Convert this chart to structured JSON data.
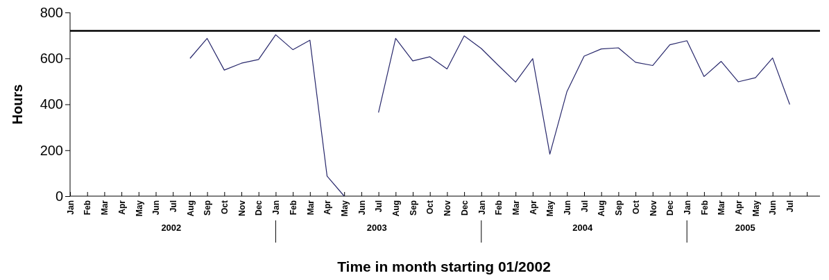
{
  "chart_data": {
    "type": "line",
    "xlabel": "Time in month starting 01/2002",
    "ylabel": "Hours",
    "categories": [
      "Jan",
      "Feb",
      "Mar",
      "Apr",
      "May",
      "Jun",
      "Jul",
      "Aug",
      "Sep",
      "Oct",
      "Nov",
      "Dec",
      "Jan",
      "Feb",
      "Mar",
      "Apr",
      "May",
      "Jun",
      "Jul",
      "Aug",
      "Sep",
      "Oct",
      "Nov",
      "Dec",
      "Jan",
      "Feb",
      "Mar",
      "Apr",
      "May",
      "Jun",
      "Jul",
      "Aug",
      "Sep",
      "Oct",
      "Nov",
      "Dec",
      "Jan",
      "Feb",
      "Mar",
      "Apr",
      "May",
      "Jun",
      "Jul",
      null
    ],
    "series": [
      {
        "color": "#27276b",
        "values": [
          null,
          null,
          null,
          null,
          null,
          null,
          null,
          600,
          687,
          549,
          579,
          595,
          703,
          638,
          679,
          87,
          0,
          null,
          364,
          687,
          589,
          607,
          554,
          698,
          643,
          569,
          497,
          599,
          183,
          456,
          610,
          641,
          646,
          583,
          569,
          659,
          677,
          521,
          587,
          498,
          516,
          602,
          399,
          null
        ]
      }
    ],
    "ylim": [
      0,
      800
    ],
    "yticks": [
      0,
      200,
      400,
      600,
      800
    ],
    "grid": false,
    "marker": "none",
    "line_style": "solid",
    "ref_lines": [
      {
        "axis": "y",
        "value": 720,
        "color": "#000000"
      }
    ],
    "annotations": [
      "2002",
      "2003",
      "2004",
      "2005"
    ]
  }
}
